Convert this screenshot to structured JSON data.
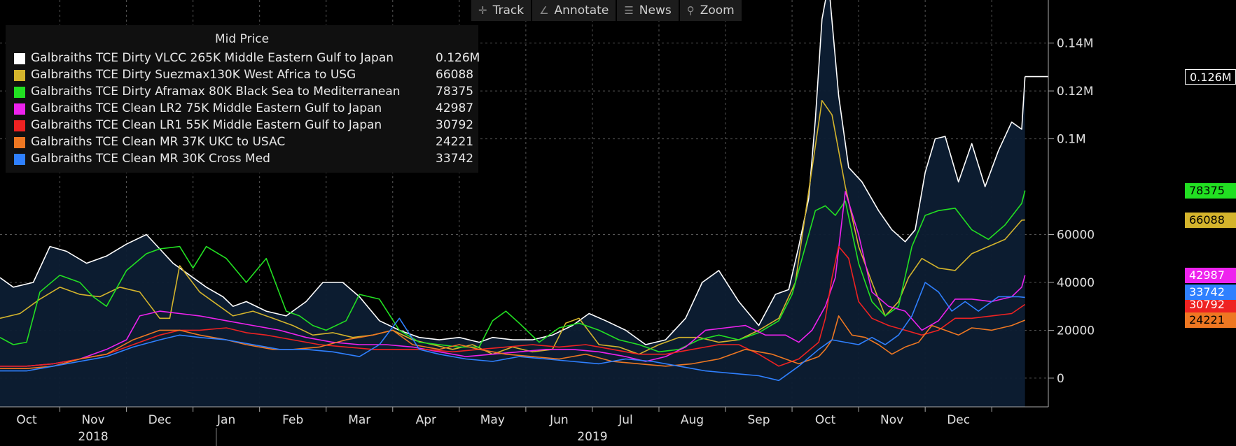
{
  "toolbar": {
    "track": {
      "label": "Track",
      "icon": "crosshair-icon"
    },
    "annotate": {
      "label": "Annotate",
      "icon": "pencil-icon"
    },
    "news": {
      "label": "News",
      "icon": "news-icon"
    },
    "zoom": {
      "label": "Zoom",
      "icon": "magnifier-icon"
    }
  },
  "legend": {
    "title": "Mid Price",
    "items": [
      {
        "name": "Galbraiths TCE Dirty VLCC 265K Middle Eastern Gulf to Japan",
        "value": "0.126M",
        "color": "#ffffff"
      },
      {
        "name": "Galbraiths TCE Dirty Suezmax130K West Africa to USG",
        "value": "66088",
        "color": "#d4b42c"
      },
      {
        "name": "Galbraiths TCE Dirty Aframax 80K Black Sea to Mediterranean",
        "value": "78375",
        "color": "#22e022"
      },
      {
        "name": "Galbraiths TCE Clean LR2 75K Middle Eastern Gulf to Japan",
        "value": "42987",
        "color": "#ee22ee"
      },
      {
        "name": "Galbraiths TCE Clean LR1 55K Middle Eastern Gulf to Japan",
        "value": "30792",
        "color": "#ee2222"
      },
      {
        "name": "Galbraiths TCE Clean MR 37K UKC to USAC",
        "value": "24221",
        "color": "#ee7722"
      },
      {
        "name": "Galbraiths TCE Clean MR 30K Cross Med",
        "value": "33742",
        "color": "#2f80ff"
      }
    ]
  },
  "chart_data": {
    "type": "line",
    "title": "Mid Price",
    "ylim": [
      -12000,
      158000
    ],
    "y_ticks": [
      0,
      20000,
      40000,
      60000,
      "0.1M",
      "0.12M",
      "0.14M"
    ],
    "y_ticks_values": [
      0,
      20000,
      40000,
      60000,
      100000,
      120000,
      140000
    ],
    "x_tick_labels": [
      "Oct",
      "Nov",
      "Dec",
      "Jan",
      "Feb",
      "Mar",
      "Apr",
      "May",
      "Jun",
      "Jul",
      "Aug",
      "Sep",
      "Oct",
      "Nov",
      "Dec"
    ],
    "x_tick_months": [
      0,
      1,
      2,
      3,
      4,
      5,
      6,
      7,
      8,
      9,
      10,
      11,
      12,
      13,
      14
    ],
    "year_labels": [
      {
        "label": "2018",
        "month": 1.0
      },
      {
        "label": "2019",
        "month": 8.5
      }
    ],
    "x_range_months": [
      -0.4,
      15.35
    ],
    "grid": true,
    "last_value_tags": [
      {
        "label": "0.126M",
        "value": 126000,
        "color": "#ffffff"
      },
      {
        "label": "78375",
        "value": 78375,
        "color": "#22e022"
      },
      {
        "label": "66088",
        "value": 66088,
        "color": "#d4b42c"
      },
      {
        "label": "42987",
        "value": 42987,
        "color": "#ee22ee"
      },
      {
        "label": "30792",
        "value": 30792,
        "color": "#ee2222"
      },
      {
        "label": "24221",
        "value": 24221,
        "color": "#ee7722"
      },
      {
        "label": "33742",
        "value": 33742,
        "color": "#2f80ff"
      }
    ],
    "series": [
      {
        "name": "Galbraiths TCE Dirty VLCC 265K Middle Eastern Gulf to Japan",
        "color": "#ffffff",
        "fill": true,
        "x": [
          -0.4,
          -0.2,
          0.1,
          0.35,
          0.6,
          0.9,
          1.2,
          1.5,
          1.8,
          2.0,
          2.2,
          2.45,
          2.7,
          2.95,
          3.1,
          3.3,
          3.6,
          3.9,
          4.2,
          4.45,
          4.75,
          5.0,
          5.3,
          5.6,
          5.9,
          6.2,
          6.5,
          6.8,
          7.0,
          7.3,
          7.6,
          7.9,
          8.2,
          8.45,
          8.7,
          9.0,
          9.3,
          9.6,
          9.9,
          10.15,
          10.4,
          10.7,
          11.0,
          11.25,
          11.45,
          11.6,
          11.75,
          11.85,
          11.95,
          12.05,
          12.2,
          12.35,
          12.55,
          12.8,
          13.0,
          13.2,
          13.35,
          13.5,
          13.65,
          13.8,
          14.0,
          14.2,
          14.4,
          14.6,
          14.8,
          14.95,
          15.0
        ],
        "y": [
          42000,
          38000,
          40000,
          55000,
          53000,
          48000,
          51000,
          56000,
          60000,
          54000,
          48000,
          43000,
          38000,
          34000,
          30000,
          32000,
          28000,
          26000,
          32000,
          40000,
          40000,
          34000,
          24000,
          20000,
          17000,
          16000,
          17000,
          15000,
          17000,
          16000,
          16000,
          18000,
          22000,
          27000,
          24000,
          20000,
          14000,
          16000,
          25000,
          40000,
          45000,
          32000,
          22000,
          35000,
          37000,
          55000,
          75000,
          108000,
          150000,
          165000,
          118000,
          88000,
          82000,
          70000,
          62000,
          57000,
          62000,
          86000,
          100000,
          101000,
          82000,
          98000,
          80000,
          95000,
          107000,
          104000,
          126000
        ]
      },
      {
        "name": "Galbraiths TCE Dirty Suezmax130K West Africa to USG",
        "color": "#d4b42c",
        "fill": false,
        "x": [
          -0.4,
          -0.1,
          0.2,
          0.5,
          0.8,
          1.1,
          1.4,
          1.7,
          2.0,
          2.15,
          2.3,
          2.6,
          2.9,
          3.1,
          3.4,
          3.7,
          4.0,
          4.3,
          4.6,
          4.9,
          5.2,
          5.5,
          5.8,
          6.1,
          6.4,
          6.7,
          7.0,
          7.3,
          7.6,
          7.9,
          8.1,
          8.3,
          8.6,
          8.9,
          9.2,
          9.5,
          9.8,
          10.1,
          10.4,
          10.7,
          11.0,
          11.3,
          11.55,
          11.75,
          11.95,
          12.1,
          12.3,
          12.5,
          12.7,
          12.9,
          13.1,
          13.25,
          13.45,
          13.7,
          13.95,
          14.2,
          14.45,
          14.7,
          14.95,
          15.0
        ],
        "y": [
          25000,
          27000,
          33000,
          38000,
          35000,
          34000,
          38000,
          36000,
          25000,
          25000,
          47000,
          36000,
          30000,
          26000,
          28000,
          25000,
          22000,
          18000,
          19000,
          17000,
          18000,
          20000,
          16000,
          14000,
          12000,
          14000,
          10000,
          13000,
          11000,
          12000,
          23000,
          25000,
          14000,
          13000,
          10000,
          14000,
          17000,
          17000,
          15000,
          16000,
          20000,
          25000,
          40000,
          78000,
          116000,
          110000,
          80000,
          55000,
          40000,
          26000,
          32000,
          42000,
          50000,
          46000,
          45000,
          52000,
          55000,
          58000,
          66000,
          66088
        ]
      },
      {
        "name": "Galbraiths TCE Dirty Aframax 80K Black Sea to Mediterranean",
        "color": "#22e022",
        "fill": false,
        "x": [
          -0.4,
          -0.2,
          0.0,
          0.2,
          0.5,
          0.8,
          1.0,
          1.2,
          1.5,
          1.8,
          2.0,
          2.3,
          2.5,
          2.7,
          3.0,
          3.3,
          3.6,
          3.9,
          4.1,
          4.3,
          4.5,
          4.8,
          5.0,
          5.3,
          5.6,
          5.9,
          6.2,
          6.5,
          6.8,
          7.0,
          7.2,
          7.4,
          7.7,
          8.0,
          8.3,
          8.6,
          8.9,
          9.2,
          9.5,
          9.8,
          10.1,
          10.4,
          10.7,
          11.0,
          11.3,
          11.5,
          11.7,
          11.85,
          12.0,
          12.15,
          12.3,
          12.5,
          12.7,
          12.9,
          13.1,
          13.3,
          13.5,
          13.7,
          13.95,
          14.2,
          14.45,
          14.7,
          14.95,
          15.0
        ],
        "y": [
          17000,
          14000,
          15000,
          36000,
          43000,
          40000,
          34000,
          30000,
          45000,
          52000,
          54000,
          55000,
          46000,
          55000,
          50000,
          40000,
          50000,
          28000,
          26000,
          22000,
          20000,
          24000,
          35000,
          33000,
          20000,
          15000,
          14000,
          13000,
          13000,
          24000,
          28000,
          23000,
          15000,
          21000,
          23000,
          20000,
          16000,
          14000,
          11000,
          12000,
          16000,
          18000,
          16000,
          19000,
          24000,
          35000,
          55000,
          70000,
          72000,
          68000,
          74000,
          48000,
          32000,
          26000,
          30000,
          55000,
          68000,
          70000,
          71000,
          62000,
          58000,
          64000,
          73000,
          78375
        ]
      },
      {
        "name": "Galbraiths TCE Clean LR2 75K Middle Eastern Gulf to Japan",
        "color": "#ee22ee",
        "fill": false,
        "x": [
          -0.4,
          0.0,
          0.4,
          0.8,
          1.2,
          1.5,
          1.7,
          2.0,
          2.3,
          2.6,
          3.0,
          3.4,
          3.8,
          4.2,
          4.6,
          5.0,
          5.4,
          5.8,
          6.2,
          6.6,
          7.0,
          7.4,
          7.8,
          8.2,
          8.6,
          9.0,
          9.3,
          9.6,
          9.9,
          10.2,
          10.5,
          10.8,
          11.1,
          11.4,
          11.6,
          11.8,
          12.0,
          12.15,
          12.3,
          12.5,
          12.7,
          12.95,
          13.2,
          13.45,
          13.7,
          13.95,
          14.2,
          14.5,
          14.8,
          14.95,
          15.0
        ],
        "y": [
          5000,
          5000,
          6000,
          8000,
          12000,
          16000,
          26000,
          28000,
          27000,
          26000,
          24000,
          22000,
          20000,
          17000,
          15000,
          14000,
          14000,
          13000,
          11000,
          9000,
          10000,
          11000,
          12000,
          12000,
          11000,
          9000,
          7000,
          9000,
          13000,
          20000,
          21000,
          22000,
          18000,
          18000,
          15000,
          20000,
          30000,
          42000,
          78000,
          60000,
          36000,
          30000,
          28000,
          20000,
          24000,
          33000,
          33000,
          32000,
          34000,
          38000,
          42987
        ]
      },
      {
        "name": "Galbraiths TCE Clean LR1 55K Middle Eastern Gulf to Japan",
        "color": "#ee2222",
        "fill": false,
        "x": [
          -0.4,
          0.0,
          0.4,
          0.8,
          1.2,
          1.6,
          2.0,
          2.3,
          2.6,
          3.0,
          3.3,
          3.6,
          4.0,
          4.4,
          4.8,
          5.2,
          5.6,
          6.0,
          6.4,
          6.8,
          7.2,
          7.6,
          8.0,
          8.4,
          8.8,
          9.2,
          9.6,
          10.0,
          10.4,
          10.7,
          11.0,
          11.3,
          11.6,
          11.9,
          12.0,
          12.1,
          12.2,
          12.35,
          12.5,
          12.7,
          12.95,
          13.2,
          13.45,
          13.7,
          13.95,
          14.2,
          14.5,
          14.8,
          15.0
        ],
        "y": [
          5000,
          5000,
          6000,
          8000,
          10000,
          14000,
          18000,
          20000,
          20000,
          21000,
          19000,
          18000,
          16000,
          14000,
          13000,
          12000,
          12000,
          12000,
          11000,
          12000,
          13000,
          14000,
          13000,
          14000,
          12000,
          10000,
          10000,
          12000,
          14000,
          14000,
          10000,
          5000,
          8000,
          15000,
          25000,
          42000,
          55000,
          50000,
          32000,
          25000,
          22000,
          20000,
          18000,
          20000,
          25000,
          25000,
          26000,
          27000,
          30792
        ]
      },
      {
        "name": "Galbraiths TCE Clean MR 37K UKC to USAC",
        "color": "#ee7722",
        "fill": false,
        "x": [
          -0.4,
          0.0,
          0.4,
          0.8,
          1.2,
          1.6,
          2.0,
          2.3,
          2.6,
          3.0,
          3.3,
          3.7,
          4.0,
          4.4,
          4.8,
          5.2,
          5.5,
          5.8,
          6.2,
          6.5,
          6.8,
          7.2,
          7.6,
          8.0,
          8.4,
          8.8,
          9.2,
          9.6,
          10.0,
          10.4,
          10.8,
          11.2,
          11.6,
          11.9,
          12.0,
          12.1,
          12.2,
          12.4,
          12.6,
          12.8,
          13.0,
          13.2,
          13.4,
          13.6,
          13.8,
          14.0,
          14.2,
          14.5,
          14.8,
          15.0
        ],
        "y": [
          4000,
          4000,
          5000,
          8000,
          10000,
          16000,
          20000,
          20000,
          18000,
          16000,
          14000,
          12000,
          12000,
          13000,
          16000,
          18000,
          20000,
          14000,
          12000,
          14000,
          12000,
          10000,
          9000,
          8000,
          10000,
          7000,
          6000,
          5000,
          6000,
          8000,
          12000,
          10000,
          6000,
          9000,
          12000,
          16000,
          26000,
          18000,
          17000,
          14000,
          10000,
          13000,
          15000,
          22000,
          20000,
          18000,
          21000,
          20000,
          22000,
          24221
        ]
      },
      {
        "name": "Galbraiths TCE Clean MR 30K Cross Med",
        "color": "#2f80ff",
        "fill": false,
        "x": [
          -0.4,
          0.0,
          0.4,
          0.8,
          1.2,
          1.6,
          2.0,
          2.3,
          2.6,
          3.0,
          3.4,
          3.8,
          4.2,
          4.6,
          5.0,
          5.3,
          5.6,
          5.9,
          6.2,
          6.6,
          7.0,
          7.4,
          7.8,
          8.2,
          8.6,
          9.0,
          9.4,
          9.8,
          10.2,
          10.6,
          11.0,
          11.3,
          11.6,
          11.9,
          12.1,
          12.3,
          12.5,
          12.7,
          12.9,
          13.1,
          13.3,
          13.5,
          13.7,
          13.9,
          14.1,
          14.3,
          14.6,
          14.9,
          15.0
        ],
        "y": [
          3000,
          3000,
          5000,
          7000,
          9000,
          13000,
          16000,
          18000,
          17000,
          16000,
          14000,
          12000,
          12000,
          11000,
          9000,
          14000,
          25000,
          12000,
          10000,
          8000,
          7000,
          9000,
          8000,
          7000,
          6000,
          8000,
          7000,
          5000,
          3000,
          2000,
          1000,
          -1000,
          5000,
          12000,
          16000,
          15000,
          14000,
          17000,
          14000,
          18000,
          26000,
          40000,
          36000,
          28000,
          32000,
          28000,
          34000,
          34000,
          33742
        ]
      }
    ]
  }
}
